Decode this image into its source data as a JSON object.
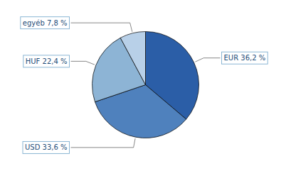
{
  "chart_data": {
    "type": "pie",
    "categories": [
      "EUR 36,2 %",
      "USD 33,6 %",
      "HUF 22,4 %",
      "egyéb 7,8 %"
    ],
    "values": [
      36.2,
      33.6,
      22.4,
      7.8
    ],
    "colors": [
      "#2B5EA7",
      "#4F81BD",
      "#8DB4D5",
      "#B8D0E8"
    ]
  }
}
